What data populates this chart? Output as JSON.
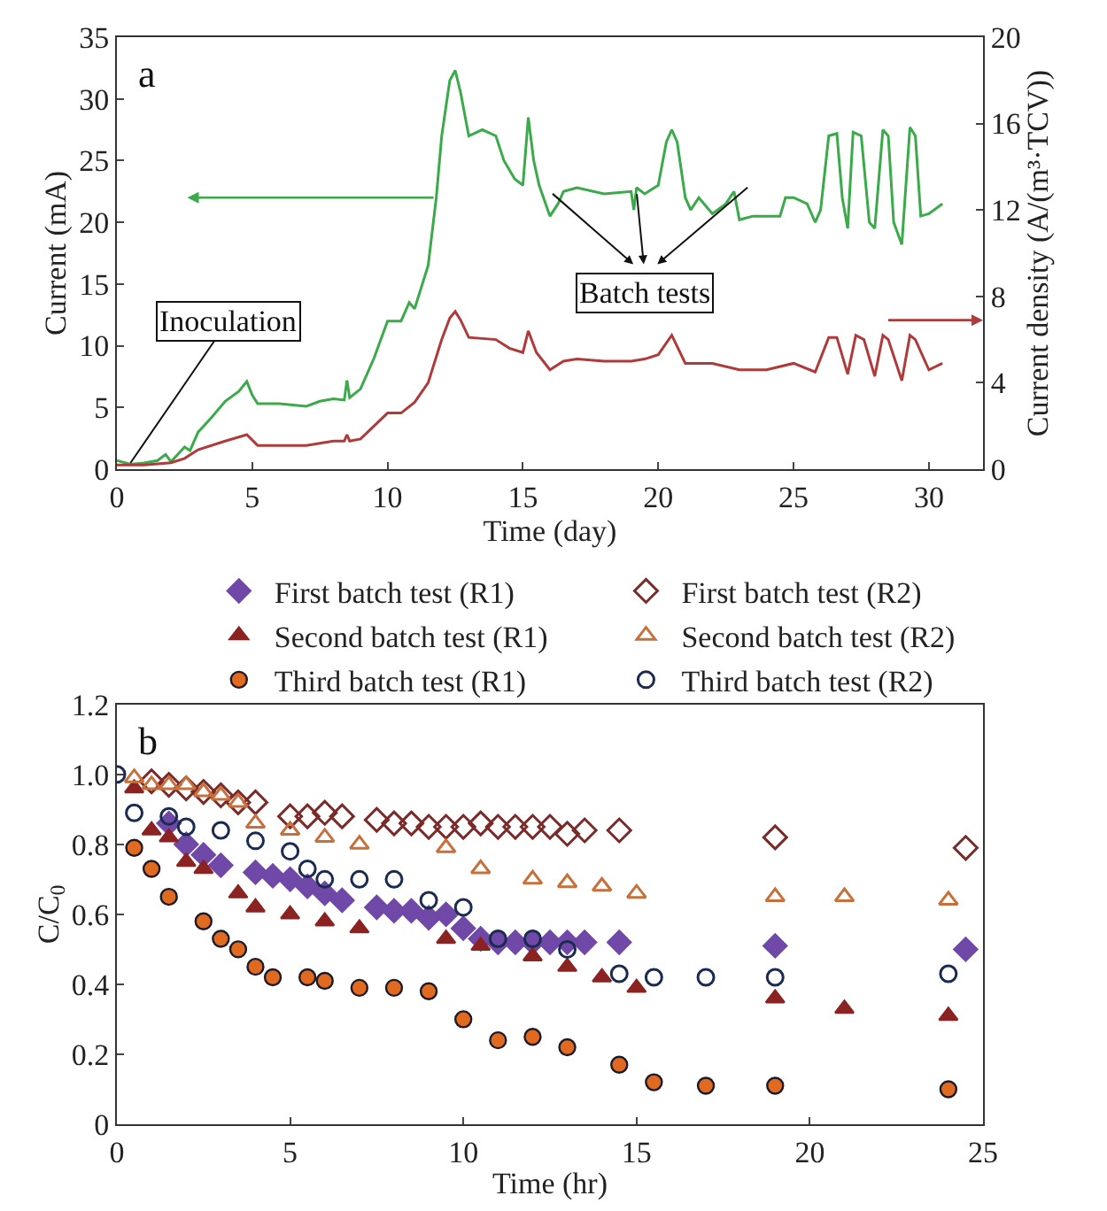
{
  "chart_data": [
    {
      "type": "line",
      "xlabel": "Time (day)",
      "ylabel": "Current (mA)",
      "y2label": "Current density (A/(m³·TCV))",
      "xlim": [
        0,
        32
      ],
      "xticks": [
        0,
        5,
        10,
        15,
        20,
        25,
        30
      ],
      "ylim": [
        0,
        35
      ],
      "yticks": [
        0,
        5,
        10,
        15,
        20,
        25,
        30,
        35
      ],
      "y2lim": [
        0,
        20
      ],
      "y2ticks": [
        0,
        4,
        8,
        12,
        16,
        20
      ],
      "series": [
        {
          "color": "#3aaa4a",
          "x": [
            0,
            0.5,
            1.0,
            1.5,
            1.8,
            2.0,
            2.5,
            2.7,
            3.0,
            3.5,
            4.0,
            4.5,
            4.8,
            5.0,
            5.2,
            6.0,
            7.0,
            7.5,
            8.0,
            8.4,
            8.5,
            8.6,
            9.0,
            9.5,
            10.0,
            10.5,
            10.8,
            11.0,
            11.5,
            11.8,
            12.0,
            12.3,
            12.5,
            12.7,
            13.0,
            13.3,
            13.5,
            14.0,
            14.3,
            14.7,
            15.0,
            15.2,
            15.4,
            15.6,
            16.0,
            16.3,
            16.5,
            17.0,
            18.0,
            19.0,
            19.1,
            19.2,
            19.5,
            20.0,
            20.3,
            20.5,
            20.7,
            21.0,
            21.2,
            21.5,
            22.0,
            22.5,
            22.8,
            23.0,
            23.5,
            24.0,
            24.5,
            24.7,
            25.0,
            25.5,
            25.8,
            26.0,
            26.3,
            26.6,
            26.8,
            27.0,
            27.2,
            27.5,
            27.8,
            28.0,
            28.3,
            28.5,
            28.7,
            29.0,
            29.3,
            29.5,
            29.7,
            30.0,
            30.5
          ],
          "values": [
            0.7,
            0.4,
            0.5,
            0.7,
            1.2,
            0.6,
            1.8,
            1.5,
            3.0,
            4.2,
            5.5,
            6.3,
            7.1,
            6.0,
            5.3,
            5.3,
            5.1,
            5.5,
            5.7,
            5.6,
            7.2,
            5.8,
            6.5,
            9.0,
            12.0,
            12.0,
            13.5,
            13.0,
            16.5,
            22.0,
            27.0,
            31.5,
            32.3,
            30.5,
            27.0,
            27.3,
            27.5,
            27.0,
            25.0,
            23.5,
            23.0,
            28.5,
            25.0,
            23.0,
            20.5,
            21.5,
            22.5,
            22.8,
            22.3,
            22.5,
            21.0,
            22.8,
            22.3,
            23.0,
            26.5,
            27.5,
            26.5,
            22.0,
            21.0,
            22.0,
            20.7,
            21.5,
            22.5,
            20.2,
            20.5,
            20.5,
            20.5,
            22.0,
            22.0,
            21.5,
            20.0,
            21.0,
            27.0,
            27.2,
            22.0,
            19.5,
            27.3,
            27.0,
            20.0,
            19.5,
            27.5,
            27.0,
            20.0,
            18.2,
            27.7,
            27.0,
            20.5,
            20.7,
            21.5
          ]
        },
        {
          "color": "#b03a3a",
          "axis": "y2",
          "x": [
            0,
            1,
            2,
            2.5,
            3,
            4,
            4.8,
            5.2,
            6,
            7,
            8,
            8.4,
            8.5,
            8.6,
            9,
            10,
            10.5,
            11,
            11.5,
            12,
            12.3,
            12.5,
            12.7,
            13,
            14,
            14.5,
            15,
            15.2,
            15.5,
            16,
            16.5,
            17,
            18,
            19,
            19.5,
            20,
            20.5,
            21,
            22,
            23,
            24,
            25,
            25.8,
            26.3,
            26.6,
            27,
            27.3,
            27.6,
            28,
            28.3,
            28.5,
            29,
            29.3,
            29.5,
            30,
            30.5
          ],
          "values": [
            0.2,
            0.2,
            0.3,
            0.5,
            0.9,
            1.3,
            1.6,
            1.1,
            1.1,
            1.1,
            1.3,
            1.3,
            1.6,
            1.3,
            1.4,
            2.6,
            2.6,
            3.1,
            4.0,
            6.0,
            7.0,
            7.3,
            6.9,
            6.1,
            6.0,
            5.6,
            5.4,
            6.4,
            5.4,
            4.6,
            5.0,
            5.1,
            5.0,
            5.0,
            5.1,
            5.3,
            6.2,
            4.9,
            4.9,
            4.6,
            4.6,
            4.9,
            4.5,
            6.1,
            6.1,
            4.4,
            6.2,
            6.0,
            4.3,
            6.2,
            6.0,
            4.1,
            6.2,
            6.0,
            4.6,
            4.9
          ]
        }
      ],
      "annotations": [
        "a",
        {
          "text": "Inoculation",
          "x": 0.5,
          "y": 0.5
        },
        "Batch tests"
      ]
    },
    {
      "type": "scatter",
      "xlabel": "Time (hr)",
      "ylabel": "C/C$_{0}$",
      "xlim": [
        0,
        25
      ],
      "xticks": [
        0,
        5,
        10,
        15,
        20,
        25
      ],
      "ylim": [
        0,
        1.2
      ],
      "yticks": [
        0,
        {
          "value": 0.2,
          "label": "0.2"
        },
        {
          "value": 0.4,
          "label": "0.4"
        },
        {
          "value": 0.6,
          "label": "0.6"
        },
        {
          "value": 0.8,
          "label": "0.8"
        },
        {
          "value": 1.0,
          "label": "1.0"
        },
        {
          "value": 1.2,
          "label": "1.2"
        }
      ],
      "legend": "top",
      "series": [
        {
          "name": "First batch test (R1)",
          "color": "#6f48a8",
          "marker": "diamond",
          "x": [
            1.5,
            2,
            2.5,
            3,
            4,
            4.5,
            5,
            5.5,
            6,
            6.5,
            7.5,
            8,
            8.5,
            9,
            9.5,
            10,
            10.5,
            11,
            11.5,
            12,
            12.5,
            13,
            13.5,
            14.5,
            19,
            24.5
          ],
          "values": [
            0.86,
            0.8,
            0.77,
            0.74,
            0.72,
            0.71,
            0.7,
            0.68,
            0.66,
            0.64,
            0.62,
            0.61,
            0.61,
            0.59,
            0.6,
            0.56,
            0.53,
            0.52,
            0.52,
            0.52,
            0.52,
            0.52,
            0.52,
            0.52,
            0.51,
            0.5
          ]
        },
        {
          "name": "First batch test (R2)",
          "color": "#7b2a2a",
          "marker": "diamond",
          "x": [
            1,
            1.5,
            2,
            2.5,
            3,
            3.5,
            4,
            5,
            5.5,
            6,
            6.5,
            7.5,
            8,
            8.5,
            9,
            9.5,
            10,
            10.5,
            11,
            11.5,
            12,
            12.5,
            13,
            13.5,
            14.5,
            19,
            24.5
          ],
          "values": [
            0.98,
            0.97,
            0.96,
            0.95,
            0.94,
            0.92,
            0.92,
            0.88,
            0.88,
            0.89,
            0.88,
            0.87,
            0.86,
            0.86,
            0.85,
            0.85,
            0.85,
            0.86,
            0.85,
            0.85,
            0.85,
            0.85,
            0.83,
            0.84,
            0.84,
            0.82,
            0.79
          ]
        },
        {
          "name": "Second batch test (R1)",
          "color": "#8b2323",
          "marker": "triangle",
          "x": [
            0.5,
            1,
            1.5,
            2,
            2.5,
            3.5,
            4,
            5,
            6,
            7,
            9.5,
            10.5,
            12,
            13,
            14,
            15,
            19,
            21,
            24
          ],
          "values": [
            0.96,
            0.84,
            0.82,
            0.75,
            0.73,
            0.66,
            0.62,
            0.6,
            0.58,
            0.56,
            0.53,
            0.51,
            0.48,
            0.45,
            0.42,
            0.39,
            0.36,
            0.33,
            0.31
          ]
        },
        {
          "name": "Second batch test (R2)",
          "color": "#c8703c",
          "marker": "triangle",
          "x": [
            0.5,
            1,
            1.5,
            2,
            2.5,
            3,
            3.5,
            4,
            5,
            6,
            7,
            9.5,
            10.5,
            12,
            13,
            14,
            15,
            19,
            21,
            24
          ],
          "values": [
            0.99,
            0.97,
            0.97,
            0.97,
            0.95,
            0.94,
            0.92,
            0.86,
            0.84,
            0.82,
            0.8,
            0.79,
            0.73,
            0.7,
            0.69,
            0.68,
            0.66,
            0.65,
            0.65,
            0.64
          ]
        },
        {
          "name": "Third batch test (R1)",
          "color": "#e06a20",
          "marker": "circle",
          "x": [
            0.5,
            1,
            1.5,
            2.5,
            3,
            3.5,
            4,
            4.5,
            5.5,
            6,
            7,
            8,
            9,
            10,
            11,
            12,
            13,
            14.5,
            15.5,
            17,
            19,
            24
          ],
          "values": [
            0.79,
            0.73,
            0.65,
            0.58,
            0.53,
            0.5,
            0.45,
            0.42,
            0.42,
            0.41,
            0.39,
            0.39,
            0.38,
            0.3,
            0.24,
            0.25,
            0.22,
            0.17,
            0.12,
            0.11,
            0.11,
            0.1
          ]
        },
        {
          "name": "Third batch test (R2)",
          "color": "#1a2a50",
          "marker": "circle",
          "x": [
            0,
            0.5,
            1.5,
            2,
            3,
            4,
            5,
            5.5,
            6,
            7,
            8,
            9,
            10,
            11,
            12,
            13,
            14.5,
            15.5,
            17,
            19,
            24
          ],
          "values": [
            1.0,
            0.89,
            0.88,
            0.85,
            0.84,
            0.81,
            0.78,
            0.73,
            0.7,
            0.7,
            0.7,
            0.64,
            0.62,
            0.53,
            0.53,
            0.5,
            0.43,
            0.42,
            0.42,
            0.42,
            0.43
          ]
        }
      ],
      "annotations": [
        "b"
      ]
    }
  ]
}
